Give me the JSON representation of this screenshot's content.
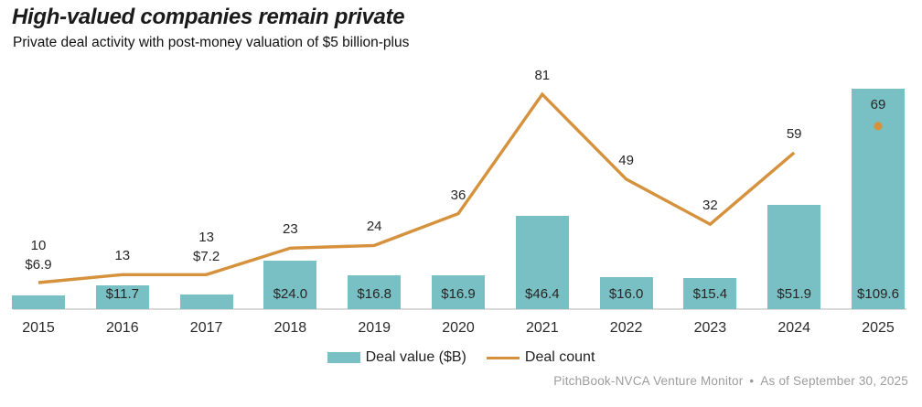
{
  "header": {
    "title": "High-valued companies remain private",
    "subtitle": "Private deal activity with post-money valuation of $5 billion-plus"
  },
  "legend": {
    "bar_label": "Deal value ($B)",
    "line_label": "Deal count"
  },
  "footer": {
    "source": "PitchBook-NVCA Venture Monitor",
    "separator": "•",
    "as_of": "As of September 30, 2025"
  },
  "colors": {
    "bar": "#79c0c4",
    "line": "#d6913c",
    "axis_line": "#dadada",
    "label_text": "#262626",
    "footer_text": "#9c9c9c"
  },
  "chart_data": {
    "type": "bar",
    "title": "High-valued companies remain private",
    "subtitle": "Private deal activity with post-money valuation of $5 billion-plus",
    "categories": [
      "2015",
      "2016",
      "2017",
      "2018",
      "2019",
      "2020",
      "2021",
      "2022",
      "2023",
      "2024",
      "2025"
    ],
    "series": [
      {
        "name": "Deal value ($B)",
        "type": "bar",
        "color": "#79c0c4",
        "values": [
          6.9,
          11.7,
          7.2,
          24.0,
          16.8,
          16.9,
          46.4,
          16.0,
          15.4,
          51.9,
          109.6
        ],
        "labels": [
          "$6.9",
          "$11.7",
          "$7.2",
          "$24.0",
          "$16.8",
          "$16.9",
          "$46.4",
          "$16.0",
          "$15.4",
          "$51.9",
          "$109.6"
        ]
      },
      {
        "name": "Deal count",
        "type": "line",
        "color": "#d6913c",
        "values": [
          10,
          13,
          13,
          23,
          24,
          36,
          81,
          49,
          32,
          59,
          69
        ],
        "line_end_index": 9,
        "final_point_marker": "dot"
      }
    ],
    "value_axis": "hidden",
    "grid": false,
    "legend_position": "bottom",
    "value_ylim": [
      0,
      110
    ],
    "count_ylim": [
      0,
      84
    ],
    "source_note": "PitchBook-NVCA Venture Monitor • As of September 30, 2025"
  }
}
